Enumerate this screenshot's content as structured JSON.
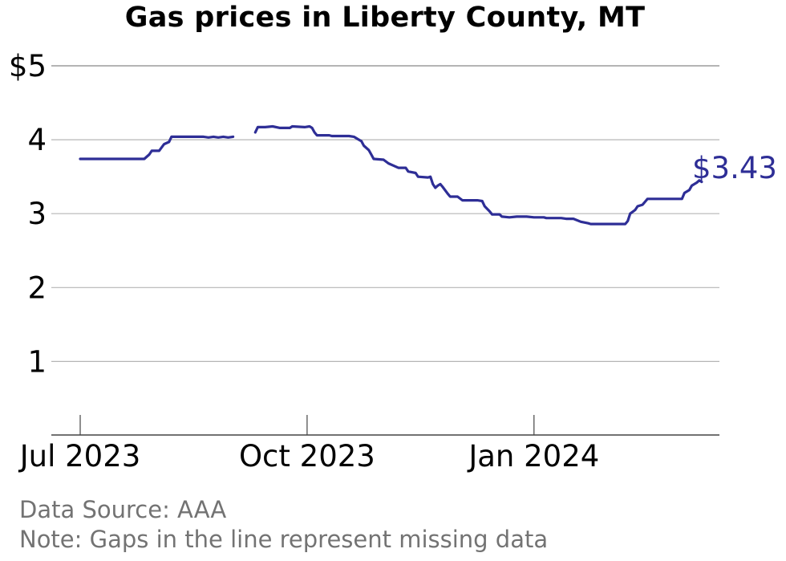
{
  "chart_data": {
    "type": "line",
    "title": "Gas prices in Liberty County, MT",
    "xlabel": "",
    "ylabel": "",
    "ylim": [
      0,
      5
    ],
    "y_ticks": [
      {
        "value": 5,
        "label": "$5"
      },
      {
        "value": 4,
        "label": "4"
      },
      {
        "value": 3,
        "label": "3"
      },
      {
        "value": 2,
        "label": "2"
      },
      {
        "value": 1,
        "label": "1"
      }
    ],
    "x_ticks": [
      {
        "date": "2023-07-01",
        "label": "Jul 2023"
      },
      {
        "date": "2023-10-01",
        "label": "Oct 2023"
      },
      {
        "date": "2024-01-01",
        "label": "Jan 2024"
      }
    ],
    "xlim": [
      "2023-06-20",
      "2024-04-01"
    ],
    "grid": true,
    "series": [
      {
        "color": "#2e2e96",
        "end_label": "$3.43",
        "segments": [
          [
            [
              "2023-07-01",
              3.74
            ],
            [
              "2023-07-27",
              3.74
            ],
            [
              "2023-07-29",
              3.8
            ],
            [
              "2023-07-30",
              3.85
            ],
            [
              "2023-08-02",
              3.85
            ],
            [
              "2023-08-04",
              3.94
            ],
            [
              "2023-08-06",
              3.97
            ],
            [
              "2023-08-07",
              4.04
            ],
            [
              "2023-08-17",
              4.04
            ],
            [
              "2023-08-20",
              4.04
            ],
            [
              "2023-08-22",
              4.03
            ],
            [
              "2023-08-24",
              4.04
            ],
            [
              "2023-08-26",
              4.03
            ],
            [
              "2023-08-28",
              4.04
            ],
            [
              "2023-08-30",
              4.03
            ],
            [
              "2023-09-01",
              4.04
            ]
          ],
          [
            [
              "2023-09-10",
              4.1
            ],
            [
              "2023-09-11",
              4.17
            ],
            [
              "2023-09-14",
              4.17
            ],
            [
              "2023-09-17",
              4.18
            ],
            [
              "2023-09-20",
              4.16
            ],
            [
              "2023-09-24",
              4.16
            ],
            [
              "2023-09-25",
              4.18
            ],
            [
              "2023-09-30",
              4.17
            ],
            [
              "2023-10-02",
              4.18
            ],
            [
              "2023-10-03",
              4.16
            ],
            [
              "2023-10-04",
              4.1
            ],
            [
              "2023-10-05",
              4.06
            ],
            [
              "2023-10-10",
              4.06
            ],
            [
              "2023-10-11",
              4.05
            ],
            [
              "2023-10-18",
              4.05
            ],
            [
              "2023-10-20",
              4.04
            ],
            [
              "2023-10-22",
              4.0
            ],
            [
              "2023-10-23",
              3.98
            ],
            [
              "2023-10-24",
              3.92
            ],
            [
              "2023-10-26",
              3.86
            ],
            [
              "2023-10-27",
              3.8
            ],
            [
              "2023-10-28",
              3.74
            ],
            [
              "2023-11-01",
              3.73
            ],
            [
              "2023-11-03",
              3.68
            ],
            [
              "2023-11-05",
              3.65
            ],
            [
              "2023-11-07",
              3.62
            ],
            [
              "2023-11-10",
              3.62
            ],
            [
              "2023-11-11",
              3.57
            ],
            [
              "2023-11-14",
              3.55
            ],
            [
              "2023-11-15",
              3.5
            ],
            [
              "2023-11-19",
              3.49
            ],
            [
              "2023-11-20",
              3.5
            ],
            [
              "2023-11-21",
              3.4
            ],
            [
              "2023-11-22",
              3.35
            ],
            [
              "2023-11-23",
              3.38
            ],
            [
              "2023-11-24",
              3.4
            ],
            [
              "2023-11-25",
              3.36
            ],
            [
              "2023-11-27",
              3.27
            ],
            [
              "2023-11-28",
              3.23
            ],
            [
              "2023-12-01",
              3.23
            ],
            [
              "2023-12-03",
              3.18
            ],
            [
              "2023-12-09",
              3.18
            ],
            [
              "2023-12-11",
              3.17
            ],
            [
              "2023-12-12",
              3.1
            ],
            [
              "2023-12-14",
              3.03
            ],
            [
              "2023-12-15",
              2.99
            ],
            [
              "2023-12-18",
              2.99
            ],
            [
              "2023-12-19",
              2.96
            ],
            [
              "2023-12-22",
              2.95
            ],
            [
              "2023-12-25",
              2.96
            ],
            [
              "2023-12-29",
              2.96
            ],
            [
              "2024-01-01",
              2.95
            ],
            [
              "2024-01-05",
              2.95
            ],
            [
              "2024-01-06",
              2.94
            ],
            [
              "2024-01-12",
              2.94
            ],
            [
              "2024-01-14",
              2.93
            ],
            [
              "2024-01-17",
              2.93
            ],
            [
              "2024-01-20",
              2.89
            ],
            [
              "2024-01-23",
              2.87
            ],
            [
              "2024-01-24",
              2.86
            ],
            [
              "2024-02-07",
              2.86
            ],
            [
              "2024-02-08",
              2.9
            ],
            [
              "2024-02-09",
              3.0
            ],
            [
              "2024-02-11",
              3.05
            ],
            [
              "2024-02-12",
              3.1
            ],
            [
              "2024-02-14",
              3.12
            ],
            [
              "2024-02-15",
              3.16
            ],
            [
              "2024-02-16",
              3.2
            ],
            [
              "2024-02-25",
              3.2
            ],
            [
              "2024-03-01",
              3.2
            ],
            [
              "2024-03-02",
              3.28
            ],
            [
              "2024-03-04",
              3.32
            ],
            [
              "2024-03-05",
              3.38
            ],
            [
              "2024-03-07",
              3.42
            ],
            [
              "2024-03-08",
              3.45
            ],
            [
              "2024-03-09",
              3.43
            ]
          ]
        ]
      }
    ]
  },
  "footer": {
    "source": "Data Source: AAA",
    "note": "Note: Gaps in the line represent missing data"
  }
}
